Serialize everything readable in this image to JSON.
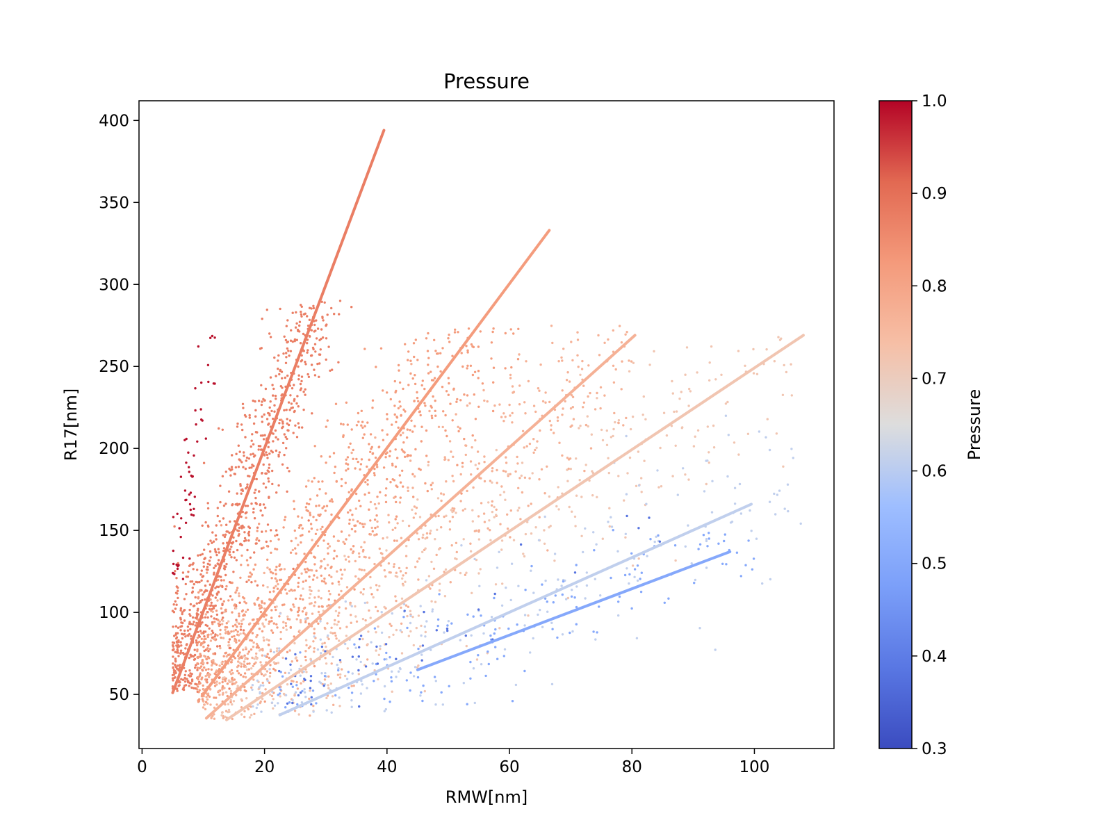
{
  "chart_data": {
    "type": "scatter",
    "title": "Pressure",
    "xlabel": "RMW[nm]",
    "ylabel": "R17[nm]",
    "xlim": [
      -0.5,
      113
    ],
    "ylim": [
      17,
      412
    ],
    "xticks": [
      0,
      20,
      40,
      60,
      80,
      100
    ],
    "yticks": [
      50,
      100,
      150,
      200,
      250,
      300,
      350,
      400
    ],
    "grid": false,
    "legend": "none",
    "colorbar": {
      "label": "Pressure",
      "range": [
        0.3,
        1.0
      ],
      "ticks": [
        "0.3",
        "0.4",
        "0.5",
        "0.6",
        "0.7",
        "0.8",
        "0.9",
        "1.0"
      ],
      "colormap": "coolwarm",
      "stops": [
        [
          0.0,
          "#3b4cc0"
        ],
        [
          0.125,
          "#5977e3"
        ],
        [
          0.25,
          "#7b9ff9"
        ],
        [
          0.375,
          "#9ebeff"
        ],
        [
          0.5,
          "#dddddd"
        ],
        [
          0.625,
          "#f6bfa6"
        ],
        [
          0.75,
          "#f49a7b"
        ],
        [
          0.875,
          "#e26952"
        ],
        [
          1.0,
          "#b40426"
        ]
      ]
    },
    "series": [
      {
        "pressure": 0.875,
        "fit_line": [
          [
            5,
            51
          ],
          [
            39.5,
            394
          ]
        ],
        "x_range": [
          5,
          43
        ],
        "y_range": [
          51,
          290
        ],
        "density": 1.0
      },
      {
        "pressure": 0.82,
        "fit_line": [
          [
            9.8,
            49
          ],
          [
            66.5,
            333
          ]
        ],
        "x_range": [
          9,
          62
        ],
        "y_range": [
          45,
          275
        ],
        "density": 0.75
      },
      {
        "pressure": 0.77,
        "fit_line": [
          [
            10.5,
            35.5
          ],
          [
            80.5,
            269
          ]
        ],
        "x_range": [
          10,
          80
        ],
        "y_range": [
          35,
          275
        ],
        "density": 0.55
      },
      {
        "pressure": 0.72,
        "fit_line": [
          [
            13.8,
            34.5
          ],
          [
            108,
            269
          ]
        ],
        "x_range": [
          13,
          108
        ],
        "y_range": [
          35,
          270
        ],
        "density": 0.35
      },
      {
        "pressure": 0.61,
        "fit_line": [
          [
            22.5,
            37.5
          ],
          [
            99.5,
            166
          ]
        ],
        "x_range": [
          18,
          108
        ],
        "y_range": [
          38,
          250
        ],
        "density": 0.22
      },
      {
        "pressure": 0.5,
        "fit_line": [
          [
            45,
            65
          ],
          [
            96,
            137
          ]
        ],
        "x_range": [
          22,
          100
        ],
        "y_range": [
          42,
          190
        ],
        "density": 0.12
      },
      {
        "pressure": 0.38,
        "fit_line": null,
        "x_range": [
          22,
          90
        ],
        "y_range": [
          42,
          165
        ],
        "density": 0.04
      },
      {
        "pressure": 0.99,
        "fit_line": null,
        "x_range": [
          5,
          12
        ],
        "y_range": [
          120,
          272
        ],
        "density": 0.05
      }
    ]
  }
}
